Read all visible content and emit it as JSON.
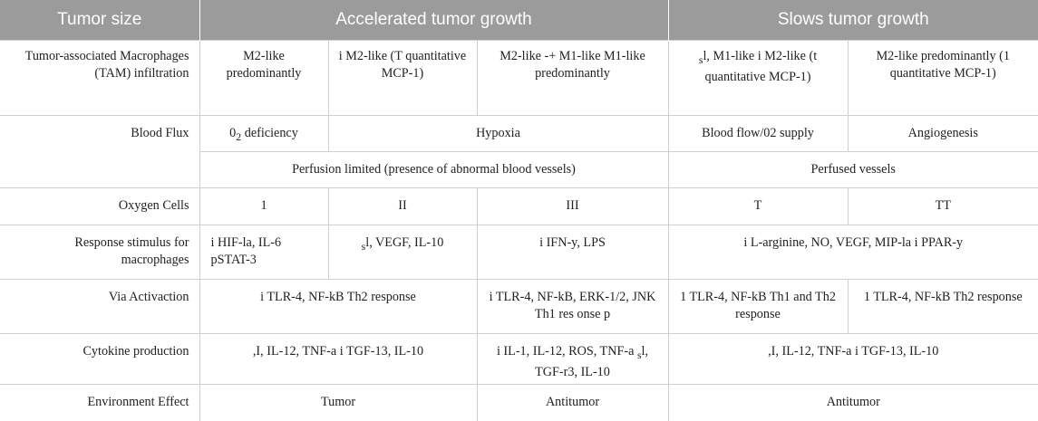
{
  "header": {
    "col0": "Tumor size",
    "col1": "Accelerated tumor growth",
    "col2": "Slows tumor growth"
  },
  "rows": {
    "tam": {
      "label": "Tumor-associated Macrophages (TAM) infiltration",
      "c1": "M2-like predominantly",
      "c2": "i M2-like (T quantitative MCP-1)",
      "c3": "M2-like -+ M1-like M1-like predominantly",
      "c4_pre": "s",
      "c4_main": "l, M1-like i M2-like (t quantitative MCP-1)",
      "c5": "M2-like predominantly (1 quantitative MCP-1)"
    },
    "blood": {
      "label": "Blood Flux",
      "c1_pre": "0",
      "c1_sub": "2",
      "c1_post": " deficiency",
      "c2": "Hypoxia",
      "c4": "Blood flow/02 supply",
      "c5": "Angiogenesis"
    },
    "perfusion": {
      "left": "Perfusion limited (presence of abnormal blood vessels)",
      "right": "Perfused vessels"
    },
    "oxygen": {
      "label": "Oxygen Cells",
      "c1": "1",
      "c2": "II",
      "c3": "III",
      "c4": "T",
      "c5": "TT"
    },
    "response": {
      "label": "Response stimulus for macrophages",
      "c1": "i HIF-la, IL-6 pSTAT-3",
      "c2_pre": "s",
      "c2_main": "l, VEGF, IL-10",
      "c3": "i IFN-y, LPS",
      "c4": "i L-arginine, NO, VEGF, MIP-la i PPAR-y"
    },
    "activation": {
      "label": "Via Activaction",
      "c1": "i TLR-4, NF-kB Th2 response",
      "c3": "i TLR-4, NF-kB, ERK-1/2, JNK Th1 res onse p",
      "c4": "1 TLR-4, NF-kB Th1 and Th2 response",
      "c5": "1 TLR-4, NF-kB Th2 response"
    },
    "cytokine": {
      "label": "Cytokine production",
      "c1": ",I, IL-12, TNF-a i TGF-13, IL-10",
      "c3_pre": "i IL-1, IL-12, ROS, TNF-a ",
      "c3_sub": "s",
      "c3_post": "l, TGF-r3, IL-10",
      "c4": ",I, IL-12, TNF-a i TGF-13, IL-10"
    },
    "environment": {
      "label": "Environment Effect",
      "c1": "Tumor",
      "c3": "Antitumor",
      "c4": "Antitumor"
    }
  }
}
